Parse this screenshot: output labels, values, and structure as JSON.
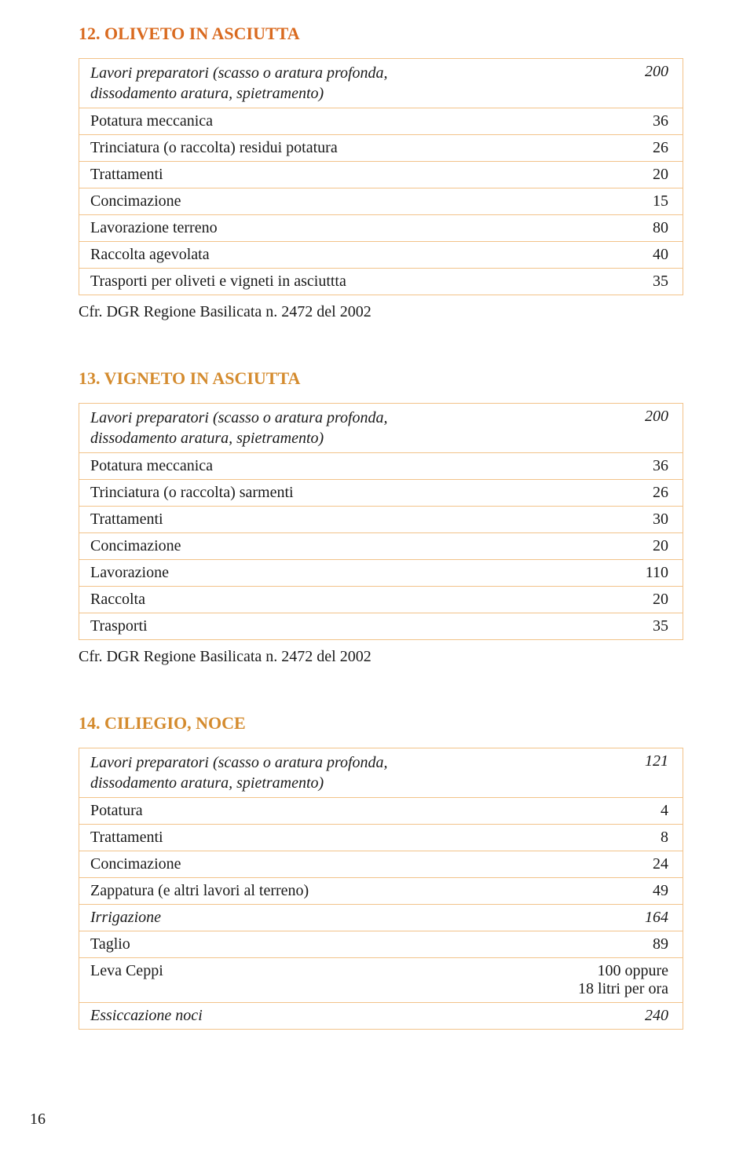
{
  "colors": {
    "title12": "#d96a1f",
    "title13": "#d48b2e",
    "title14": "#d48b2e",
    "tableBorder": "#f2c38a",
    "text": "#1a1a1a"
  },
  "section12": {
    "title": "12. OLIVETO IN ASCIUTTA",
    "rows": [
      {
        "label_l1": "Lavori preparatori (scasso o aratura profonda,",
        "label_l2": "dissodamento aratura, spietramento)",
        "value": "200",
        "italic": true
      },
      {
        "label": "Potatura meccanica",
        "value": "36"
      },
      {
        "label": "Trinciatura (o raccolta) residui potatura",
        "value": "26"
      },
      {
        "label": "Trattamenti",
        "value": "20"
      },
      {
        "label": "Concimazione",
        "value": "15"
      },
      {
        "label": "Lavorazione terreno",
        "value": "80"
      },
      {
        "label": "Raccolta agevolata",
        "value": "40"
      },
      {
        "label": "Trasporti per oliveti e vigneti in asciuttta",
        "value": "35"
      }
    ],
    "footnote": "Cfr. DGR Regione Basilicata n. 2472 del 2002"
  },
  "section13": {
    "title": "13. VIGNETO IN ASCIUTTA",
    "rows": [
      {
        "label_l1": "Lavori preparatori (scasso o aratura profonda,",
        "label_l2": "dissodamento aratura, spietramento)",
        "value": "200",
        "italic": true
      },
      {
        "label": "Potatura meccanica",
        "value": "36"
      },
      {
        "label": "Trinciatura (o raccolta) sarmenti",
        "value": "26"
      },
      {
        "label": "Trattamenti",
        "value": "30"
      },
      {
        "label": "Concimazione",
        "value": "20"
      },
      {
        "label": "Lavorazione",
        "value": "110"
      },
      {
        "label": "Raccolta",
        "value": "20"
      },
      {
        "label": "Trasporti",
        "value": "35"
      }
    ],
    "footnote": "Cfr. DGR Regione Basilicata n. 2472 del 2002"
  },
  "section14": {
    "title": "14. CILIEGIO, NOCE",
    "rows": [
      {
        "label_l1": "Lavori preparatori (scasso o aratura profonda,",
        "label_l2": "dissodamento aratura, spietramento)",
        "value": "121",
        "italic": true
      },
      {
        "label": "Potatura",
        "value": "4"
      },
      {
        "label": "Trattamenti",
        "value": "8"
      },
      {
        "label": "Concimazione",
        "value": "24"
      },
      {
        "label": "Zappatura (e altri lavori al terreno)",
        "value": "49"
      },
      {
        "label": "Irrigazione",
        "value": "164",
        "italic": true
      },
      {
        "label": "Taglio",
        "value": "89"
      },
      {
        "label": "Leva Ceppi",
        "value_l1": "100 oppure",
        "value_l2": "18 litri per ora"
      },
      {
        "label": "Essiccazione noci",
        "value": "240",
        "italic": true
      }
    ]
  },
  "pageNumber": "16"
}
